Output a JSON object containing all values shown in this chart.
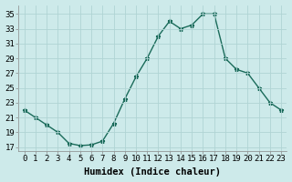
{
  "x": [
    0,
    1,
    2,
    3,
    4,
    5,
    6,
    7,
    8,
    9,
    10,
    11,
    12,
    13,
    14,
    15,
    16,
    17,
    18,
    19,
    20,
    21,
    22,
    23
  ],
  "y": [
    22,
    21,
    20,
    19,
    17.5,
    17.2,
    17.3,
    17.8,
    20.2,
    23.5,
    26.5,
    29,
    32,
    34,
    33,
    33.5,
    35,
    35,
    29,
    27.5,
    27,
    25,
    23,
    22
  ],
  "line_color": "#1a6b5a",
  "marker": "*",
  "marker_size": 3.5,
  "background_color": "#cdeaea",
  "grid_color": "#b0d4d4",
  "xlabel": "Humidex (Indice chaleur)",
  "xlabel_fontsize": 7.5,
  "ylabel_ticks": [
    17,
    19,
    21,
    23,
    25,
    27,
    29,
    31,
    33,
    35
  ],
  "xticks": [
    0,
    1,
    2,
    3,
    4,
    5,
    6,
    7,
    8,
    9,
    10,
    11,
    12,
    13,
    14,
    15,
    16,
    17,
    18,
    19,
    20,
    21,
    22,
    23
  ],
  "ylim": [
    16.5,
    36.2
  ],
  "xlim": [
    -0.5,
    23.5
  ],
  "tick_fontsize": 6.5,
  "line_width": 1.0
}
